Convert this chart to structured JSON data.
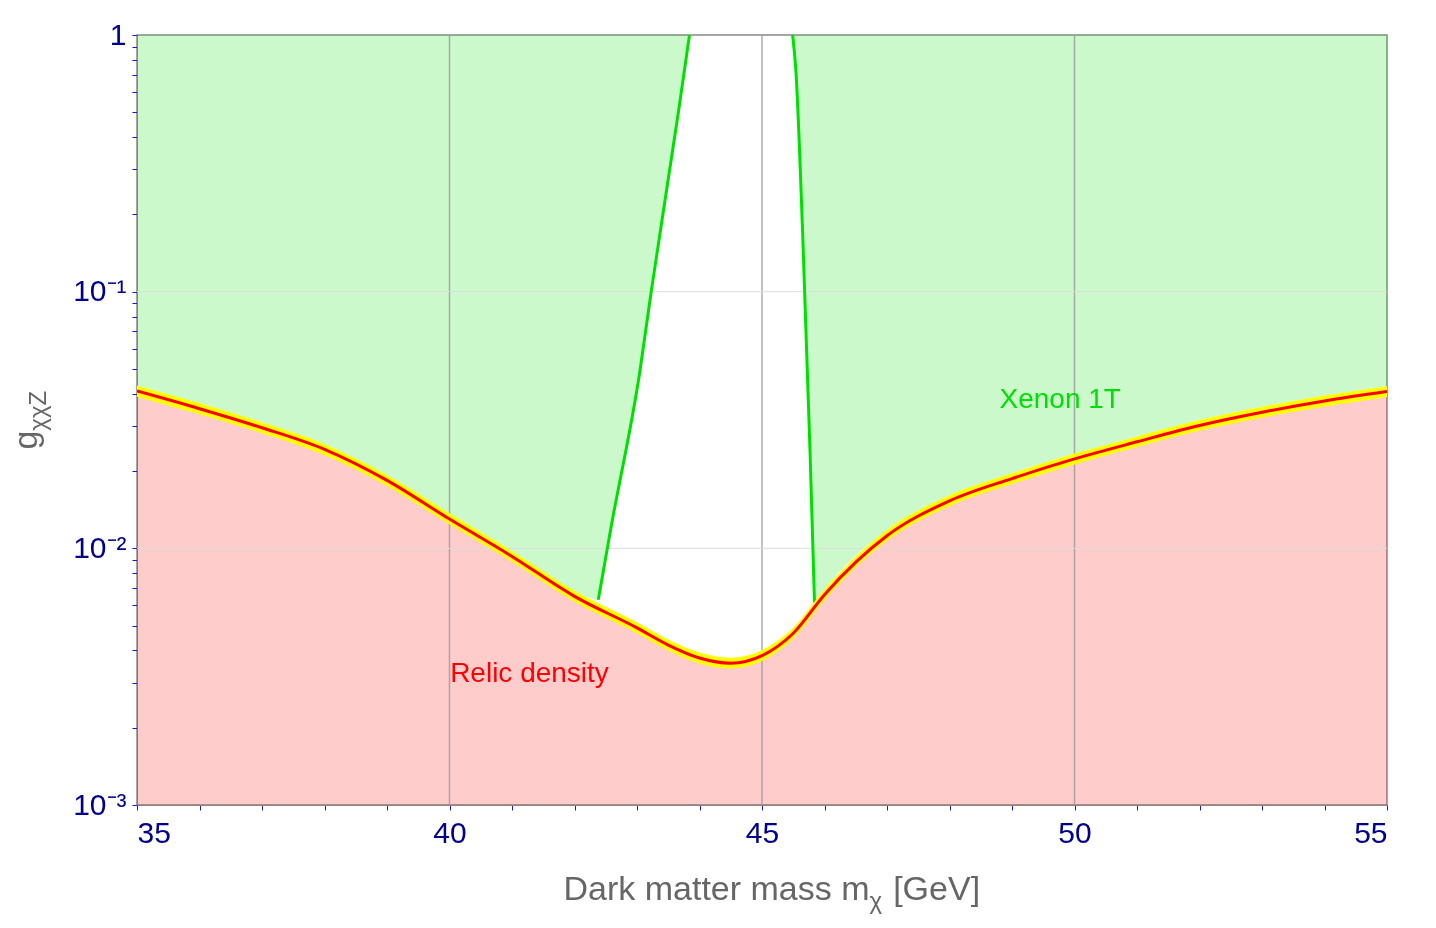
{
  "chart_data": {
    "type": "area",
    "xlabel": "Dark matter mass m$_{χ}$ [GeV]",
    "ylabel": "g$_{χχZ}$",
    "log": "y",
    "xlim": [
      35,
      55
    ],
    "ylim": [
      0.001,
      1
    ],
    "xticks": [
      35,
      {
        "value": 36,
        "label": null
      },
      {
        "value": 37,
        "label": null
      },
      {
        "value": 38,
        "label": null
      },
      {
        "value": 39,
        "label": null
      },
      40,
      {
        "value": 41,
        "label": null
      },
      {
        "value": 42,
        "label": null
      },
      {
        "value": 43,
        "label": null
      },
      {
        "value": 44,
        "label": null
      },
      45,
      {
        "value": 46,
        "label": null
      },
      {
        "value": 47,
        "label": null
      },
      {
        "value": 48,
        "label": null
      },
      {
        "value": 49,
        "label": null
      },
      50,
      {
        "value": 51,
        "label": null
      },
      {
        "value": 52,
        "label": null
      },
      {
        "value": 53,
        "label": null
      },
      {
        "value": 54,
        "label": null
      },
      55
    ],
    "yticks": [
      {
        "value": 0.001,
        "label": "10⁻³"
      },
      {
        "value": 0.002,
        "label": null
      },
      {
        "value": 0.003,
        "label": null
      },
      {
        "value": 0.004,
        "label": null
      },
      {
        "value": 0.005,
        "label": null
      },
      {
        "value": 0.006,
        "label": null
      },
      {
        "value": 0.007,
        "label": null
      },
      {
        "value": 0.008,
        "label": null
      },
      {
        "value": 0.009,
        "label": null
      },
      {
        "value": 0.01,
        "label": "10⁻²"
      },
      {
        "value": 0.02,
        "label": null
      },
      {
        "value": 0.03,
        "label": null
      },
      {
        "value": 0.04,
        "label": null
      },
      {
        "value": 0.05,
        "label": null
      },
      {
        "value": 0.06,
        "label": null
      },
      {
        "value": 0.07,
        "label": null
      },
      {
        "value": 0.08,
        "label": null
      },
      {
        "value": 0.09,
        "label": null
      },
      {
        "value": 0.1,
        "label": "10⁻¹"
      },
      {
        "value": 0.2,
        "label": null
      },
      {
        "value": 0.3,
        "label": null
      },
      {
        "value": 0.4,
        "label": null
      },
      {
        "value": 0.5,
        "label": null
      },
      {
        "value": 0.6,
        "label": null
      },
      {
        "value": 0.7,
        "label": null
      },
      {
        "value": 0.8,
        "label": null
      },
      {
        "value": 0.9,
        "label": null
      },
      1
    ],
    "grid": true,
    "series": [
      {
        "color": "#ff0000",
        "x": [
          35,
          36,
          37,
          38,
          39,
          40,
          41,
          42,
          43,
          43.5,
          44,
          44.5,
          45,
          45.5,
          46,
          47,
          48,
          49,
          50,
          51,
          52,
          53,
          54,
          55
        ],
        "values": [
          0.041,
          0.035,
          0.0295,
          0.0243,
          0.0184,
          0.013,
          0.0093,
          0.0065,
          0.0049,
          0.0042,
          0.00374,
          0.00357,
          0.00382,
          0.00467,
          0.0066,
          0.0112,
          0.0153,
          0.0187,
          0.0223,
          0.026,
          0.0301,
          0.0339,
          0.0375,
          0.0408
        ],
        "lower": [
          0.039,
          0.0333,
          0.0281,
          0.0231,
          0.0175,
          0.0124,
          0.00886,
          0.00619,
          0.00467,
          0.004,
          0.00356,
          0.0034,
          0.00364,
          0.00445,
          0.00629,
          0.0107,
          0.0146,
          0.0178,
          0.0212,
          0.0248,
          0.0287,
          0.0323,
          0.0357,
          0.0389
        ],
        "upper": [
          0.0431,
          0.0368,
          0.031,
          0.0255,
          0.0193,
          0.0137,
          0.00977,
          0.00683,
          0.00515,
          0.00441,
          0.00393,
          0.00375,
          0.00401,
          0.0049,
          0.00693,
          0.0118,
          0.0161,
          0.0196,
          0.0234,
          0.0273,
          0.0316,
          0.0356,
          0.0394,
          0.0428
        ]
      },
      {
        "type": "line",
        "color": "#00e000",
        "x": [
          35,
          36,
          37,
          38,
          39,
          40,
          41,
          42,
          42.38,
          42.58,
          43.05,
          43.22,
          43.66,
          43.84,
          44.6,
          45.49,
          45.54,
          45.65,
          45.77,
          45.84,
          46,
          47,
          48,
          49,
          50,
          51,
          52,
          53,
          54,
          55
        ],
        "values": [
          null,
          null,
          null,
          null,
          null,
          null,
          null,
          null,
          0.0063,
          0.0119,
          0.0496,
          0.0973,
          0.496,
          1,
          null,
          1,
          0.739,
          0.17,
          0.0233,
          0.00615,
          null,
          null,
          null,
          null,
          null,
          null,
          null,
          null,
          null,
          null
        ],
        "lower": [
          0.0431,
          0.0368,
          0.031,
          0.0255,
          0.0193,
          0.0137,
          0.00977,
          0.00683,
          0.0063,
          0.0119,
          0.0496,
          0.0973,
          0.496,
          1,
          null,
          1,
          0.739,
          0.17,
          0.0233,
          0.00615,
          0.00693,
          0.0118,
          0.0161,
          0.0196,
          0.0234,
          0.0273,
          0.0316,
          0.0356,
          0.0394,
          0.0428
        ],
        "upper": [
          1,
          1,
          1,
          1,
          1,
          1,
          1,
          1,
          1,
          1,
          1,
          1,
          1,
          1,
          null,
          1,
          1,
          1,
          1,
          1,
          1,
          1,
          1,
          1,
          1,
          1,
          1,
          1,
          1,
          1
        ]
      }
    ],
    "annotations": [
      "Relic density",
      "Xenon 1T"
    ]
  }
}
